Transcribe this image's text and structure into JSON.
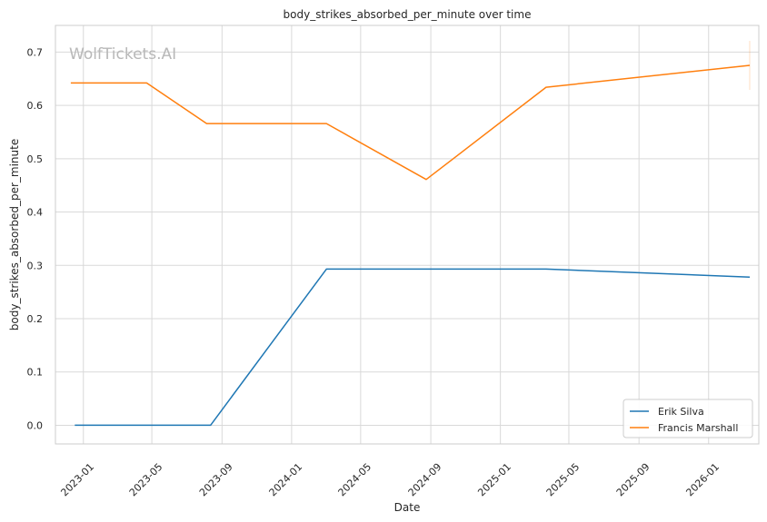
{
  "chart_data": {
    "type": "line",
    "title": "body_strikes_absorbed_per_minute over time",
    "xlabel": "Date",
    "ylabel": "body_strikes_absorbed_per_minute",
    "watermark": "WolfTickets.AI",
    "x_ticks": [
      "2023-01",
      "2023-05",
      "2023-09",
      "2024-01",
      "2024-05",
      "2024-09",
      "2025-01",
      "2025-05",
      "2025-09",
      "2026-01"
    ],
    "y_ticks": [
      0.0,
      0.1,
      0.2,
      0.3,
      0.4,
      0.5,
      0.6,
      0.7
    ],
    "xlim": [
      "2022-11-13",
      "2026-03-30"
    ],
    "ylim": [
      -0.035,
      0.75
    ],
    "grid": true,
    "legend_position": "lower-right",
    "series": [
      {
        "name": "Erik Silva",
        "color": "#1f77b4",
        "points": [
          {
            "x": "2022-12-17",
            "y": 0.0
          },
          {
            "x": "2023-08-12",
            "y": 0.0
          },
          {
            "x": "2024-03-02",
            "y": 0.293
          },
          {
            "x": "2025-03-22",
            "y": 0.293
          },
          {
            "x": "2026-03-14",
            "y": 0.278
          }
        ]
      },
      {
        "name": "Francis Marshall",
        "color": "#ff7f0e",
        "points": [
          {
            "x": "2022-12-10",
            "y": 0.642
          },
          {
            "x": "2023-04-22",
            "y": 0.642
          },
          {
            "x": "2023-08-05",
            "y": 0.566
          },
          {
            "x": "2024-03-02",
            "y": 0.566
          },
          {
            "x": "2024-08-24",
            "y": 0.461
          },
          {
            "x": "2025-03-22",
            "y": 0.634
          },
          {
            "x": "2026-03-14",
            "y": 0.675
          }
        ]
      }
    ]
  }
}
